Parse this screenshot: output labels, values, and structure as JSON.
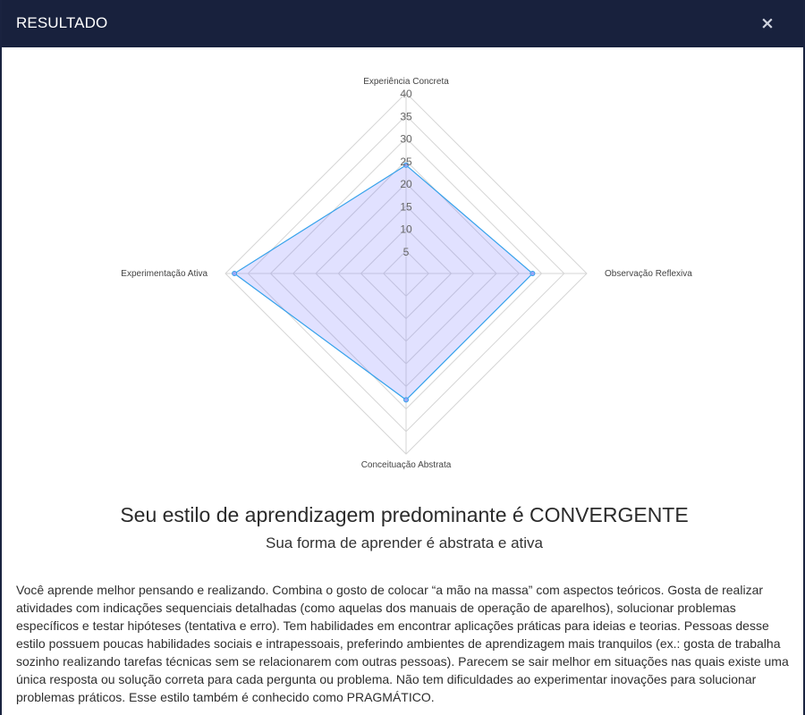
{
  "header": {
    "title": "RESULTADO",
    "close_label": "×"
  },
  "chart_data": {
    "type": "radar",
    "axes": [
      "Experiência Concreta",
      "Observação Reflexiva",
      "Conceituação Abstrata",
      "Experimentação Ativa"
    ],
    "ticks": [
      "5",
      "10",
      "15",
      "20",
      "25",
      "30",
      "35",
      "40"
    ],
    "rmin": 0,
    "rmax": 40,
    "step": 5,
    "series": [
      {
        "values": [
          24,
          28,
          28,
          38
        ]
      }
    ],
    "colors": {
      "fill": "rgba(120,120,255,0.22)",
      "stroke": "#36a2eb",
      "point": "#9aa6f5",
      "grid": "#d6d6d6"
    }
  },
  "result": {
    "headline": "Seu estilo de aprendizagem predominante é CONVERGENTE",
    "subheadline": "Sua forma de aprender é abstrata e ativa",
    "description": "Você aprende melhor pensando e realizando. Combina o gosto de colocar “a mão na massa” com aspectos teóricos. Gosta de realizar atividades com indicações sequenciais detalhadas (como aquelas dos manuais de operação de aparelhos), solucionar problemas específicos e testar hipóteses (tentativa e erro). Tem habilidades em encontrar aplicações práticas para ideias e teorias. Pessoas desse estilo possuem poucas habilidades sociais e intrapessoais, preferindo ambientes de aprendizagem mais tranquilos (ex.: gosta de trabalha sozinho realizando tarefas técnicas sem se relacionarem com outras pessoas). Parecem se sair melhor em situações nas quais existe uma única resposta ou solução correta para cada pergunta ou problema. Não tem dificuldades ao experimentar inovações para solucionar problemas práticos. Esse estilo também é conhecido como PRAGMÁTICO."
  }
}
